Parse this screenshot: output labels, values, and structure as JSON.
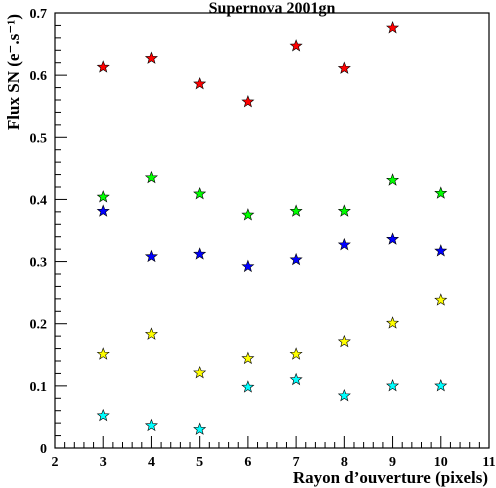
{
  "chart_data": {
    "type": "scatter",
    "title": "Supernova 2001gn",
    "xlabel": "Rayon d’ouverture (pixels)",
    "ylabel": "Flux SN (e⁻.s⁻¹)",
    "xlim": [
      2,
      11
    ],
    "ylim": [
      0,
      0.7
    ],
    "x_ticks": [
      "2",
      "3",
      "4",
      "5",
      "6",
      "7",
      "8",
      "9",
      "10",
      "11"
    ],
    "y_ticks": [
      "0",
      "0.1",
      "0.2",
      "0.3",
      "0.4",
      "0.5",
      "0.6",
      "0.7"
    ],
    "grid": false,
    "legend": "none",
    "marker": "star",
    "series": [
      {
        "color": "#ff0000",
        "x": [
          3,
          4,
          5,
          6,
          7,
          8,
          9
        ],
        "y": [
          0.613,
          0.627,
          0.586,
          0.557,
          0.647,
          0.611,
          0.676
        ]
      },
      {
        "color": "#00ff00",
        "x": [
          3,
          4,
          5,
          6,
          7,
          8,
          9,
          10
        ],
        "y": [
          0.404,
          0.435,
          0.409,
          0.375,
          0.381,
          0.381,
          0.431,
          0.41
        ]
      },
      {
        "color": "#0000ff",
        "x": [
          3,
          4,
          5,
          6,
          7,
          8,
          9,
          10
        ],
        "y": [
          0.381,
          0.308,
          0.312,
          0.292,
          0.303,
          0.327,
          0.336,
          0.317
        ]
      },
      {
        "color": "#ffff00",
        "x": [
          3,
          4,
          5,
          6,
          7,
          8,
          9,
          10
        ],
        "y": [
          0.151,
          0.183,
          0.121,
          0.144,
          0.151,
          0.171,
          0.201,
          0.238
        ]
      },
      {
        "color": "#00ffff",
        "x": [
          3,
          4,
          5,
          6,
          7,
          8,
          9,
          10
        ],
        "y": [
          0.052,
          0.036,
          0.03,
          0.098,
          0.11,
          0.084,
          0.1,
          0.1
        ]
      }
    ]
  }
}
